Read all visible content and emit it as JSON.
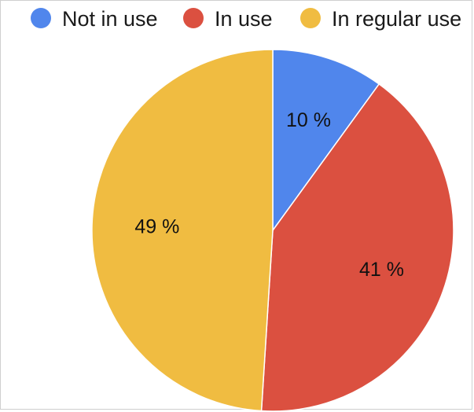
{
  "chart_data": {
    "type": "pie",
    "title": "",
    "legend_position": "top",
    "slices": [
      {
        "name": "Not in use",
        "value": 10,
        "label": "10 %",
        "color": "#5086EC"
      },
      {
        "name": "In use",
        "value": 41,
        "label": "41 %",
        "color": "#DB5040"
      },
      {
        "name": "In regular use",
        "value": 49,
        "label": "49 %",
        "color": "#F0BC41"
      }
    ]
  }
}
